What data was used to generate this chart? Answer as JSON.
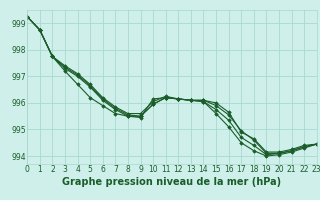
{
  "title": "Graphe pression niveau de la mer (hPa)",
  "background_color": "#cff0ea",
  "grid_color": "#a8d8d0",
  "line_color": "#1a5c2a",
  "series": [
    [
      999.25,
      998.75,
      997.75,
      997.2,
      996.7,
      996.2,
      995.9,
      995.6,
      995.5,
      995.45,
      996.15,
      996.2,
      996.15,
      996.1,
      996.1,
      996.0,
      995.65,
      994.9,
      994.65,
      994.15,
      994.15,
      994.25,
      994.4,
      994.45
    ],
    [
      999.25,
      998.75,
      997.75,
      997.3,
      997.0,
      996.6,
      996.1,
      995.75,
      995.5,
      995.5,
      995.95,
      996.2,
      996.15,
      996.1,
      996.1,
      995.9,
      995.55,
      994.95,
      994.6,
      994.1,
      994.1,
      994.2,
      994.35,
      994.45
    ],
    [
      999.25,
      998.75,
      997.75,
      997.35,
      997.05,
      996.65,
      996.15,
      995.8,
      995.55,
      995.5,
      995.95,
      996.2,
      996.15,
      996.1,
      996.05,
      995.75,
      995.35,
      994.7,
      994.4,
      994.05,
      994.1,
      994.2,
      994.35,
      994.45
    ],
    [
      999.25,
      998.75,
      997.75,
      997.4,
      997.1,
      996.7,
      996.2,
      995.85,
      995.6,
      995.6,
      996.05,
      996.25,
      996.15,
      996.1,
      996.05,
      995.6,
      995.1,
      994.5,
      994.2,
      994.0,
      994.05,
      994.15,
      994.3,
      994.45
    ]
  ],
  "xlim": [
    0,
    23
  ],
  "ylim": [
    993.7,
    999.5
  ],
  "yticks": [
    994,
    995,
    996,
    997,
    998,
    999
  ],
  "xticks": [
    0,
    1,
    2,
    3,
    4,
    5,
    6,
    7,
    8,
    9,
    10,
    11,
    12,
    13,
    14,
    15,
    16,
    17,
    18,
    19,
    20,
    21,
    22,
    23
  ],
  "marker": "D",
  "markersize": 1.8,
  "linewidth": 0.8,
  "title_fontsize": 7,
  "tick_fontsize": 5.5
}
